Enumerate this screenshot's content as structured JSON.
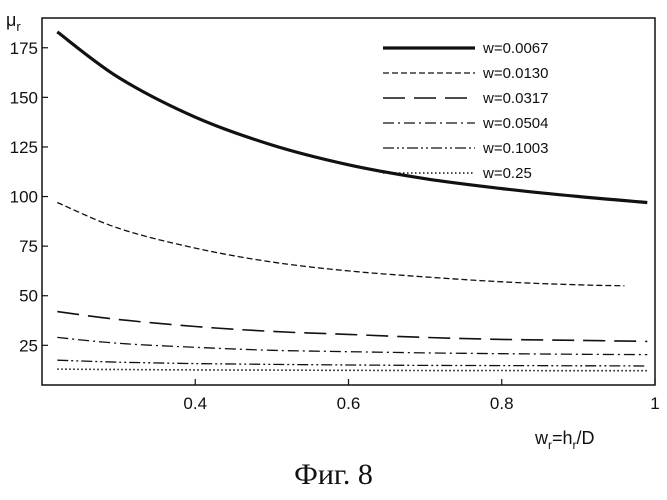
{
  "figure_caption": "Фиг. 8",
  "chart_data": {
    "type": "line",
    "title": "",
    "ylabel": "μ",
    "ylabel_sub": "r",
    "xlabel_main": "w",
    "xlabel_sub": "r",
    "xlabel_rest": "=h",
    "xlabel_rest_sub": "r",
    "xlabel_tail": "/D",
    "xlim": [
      0.2,
      1.0
    ],
    "ylim": [
      5,
      190
    ],
    "xticks": [
      0.4,
      0.6,
      0.8,
      1
    ],
    "xtick_labels": [
      "0.4",
      "0.6",
      "0.8",
      "1"
    ],
    "yticks": [
      25,
      50,
      75,
      100,
      125,
      150,
      175
    ],
    "ytick_labels": [
      "25",
      "50",
      "75",
      "100",
      "125",
      "150",
      "175"
    ],
    "grid": false,
    "legend_position": "top-right",
    "series": [
      {
        "name": "w=0.0067",
        "style": "solid-thick",
        "x": [
          0.22,
          0.3,
          0.4,
          0.5,
          0.6,
          0.7,
          0.8,
          0.9,
          0.99
        ],
        "y": [
          183,
          160,
          140,
          126,
          116,
          109,
          104,
          100,
          97
        ]
      },
      {
        "name": "w=0.0130",
        "style": "short-dash",
        "x": [
          0.22,
          0.3,
          0.4,
          0.5,
          0.6,
          0.7,
          0.8,
          0.9,
          0.96
        ],
        "y": [
          97,
          84,
          74,
          67,
          62.5,
          59.5,
          57,
          55.5,
          55
        ]
      },
      {
        "name": "w=0.0317",
        "style": "long-dash",
        "x": [
          0.22,
          0.3,
          0.4,
          0.5,
          0.6,
          0.7,
          0.8,
          0.9,
          0.99
        ],
        "y": [
          42,
          38,
          34.5,
          32,
          30.5,
          29,
          28,
          27.5,
          27
        ]
      },
      {
        "name": "w=0.0504",
        "style": "dash-dot",
        "x": [
          0.22,
          0.3,
          0.4,
          0.5,
          0.6,
          0.7,
          0.8,
          0.9,
          0.99
        ],
        "y": [
          29,
          26,
          24,
          22.5,
          21.8,
          21.2,
          20.8,
          20.5,
          20.3
        ]
      },
      {
        "name": "w=0.1003",
        "style": "dash-dot-dot",
        "x": [
          0.22,
          0.3,
          0.4,
          0.5,
          0.6,
          0.7,
          0.8,
          0.9,
          0.99
        ],
        "y": [
          17.5,
          16.5,
          15.8,
          15.4,
          15.1,
          14.9,
          14.8,
          14.7,
          14.6
        ]
      },
      {
        "name": "w=0.25",
        "style": "dotted",
        "x": [
          0.22,
          0.3,
          0.4,
          0.5,
          0.6,
          0.7,
          0.8,
          0.9,
          0.99
        ],
        "y": [
          13,
          12.8,
          12.6,
          12.5,
          12.4,
          12.3,
          12.3,
          12.2,
          12.2
        ]
      }
    ]
  }
}
